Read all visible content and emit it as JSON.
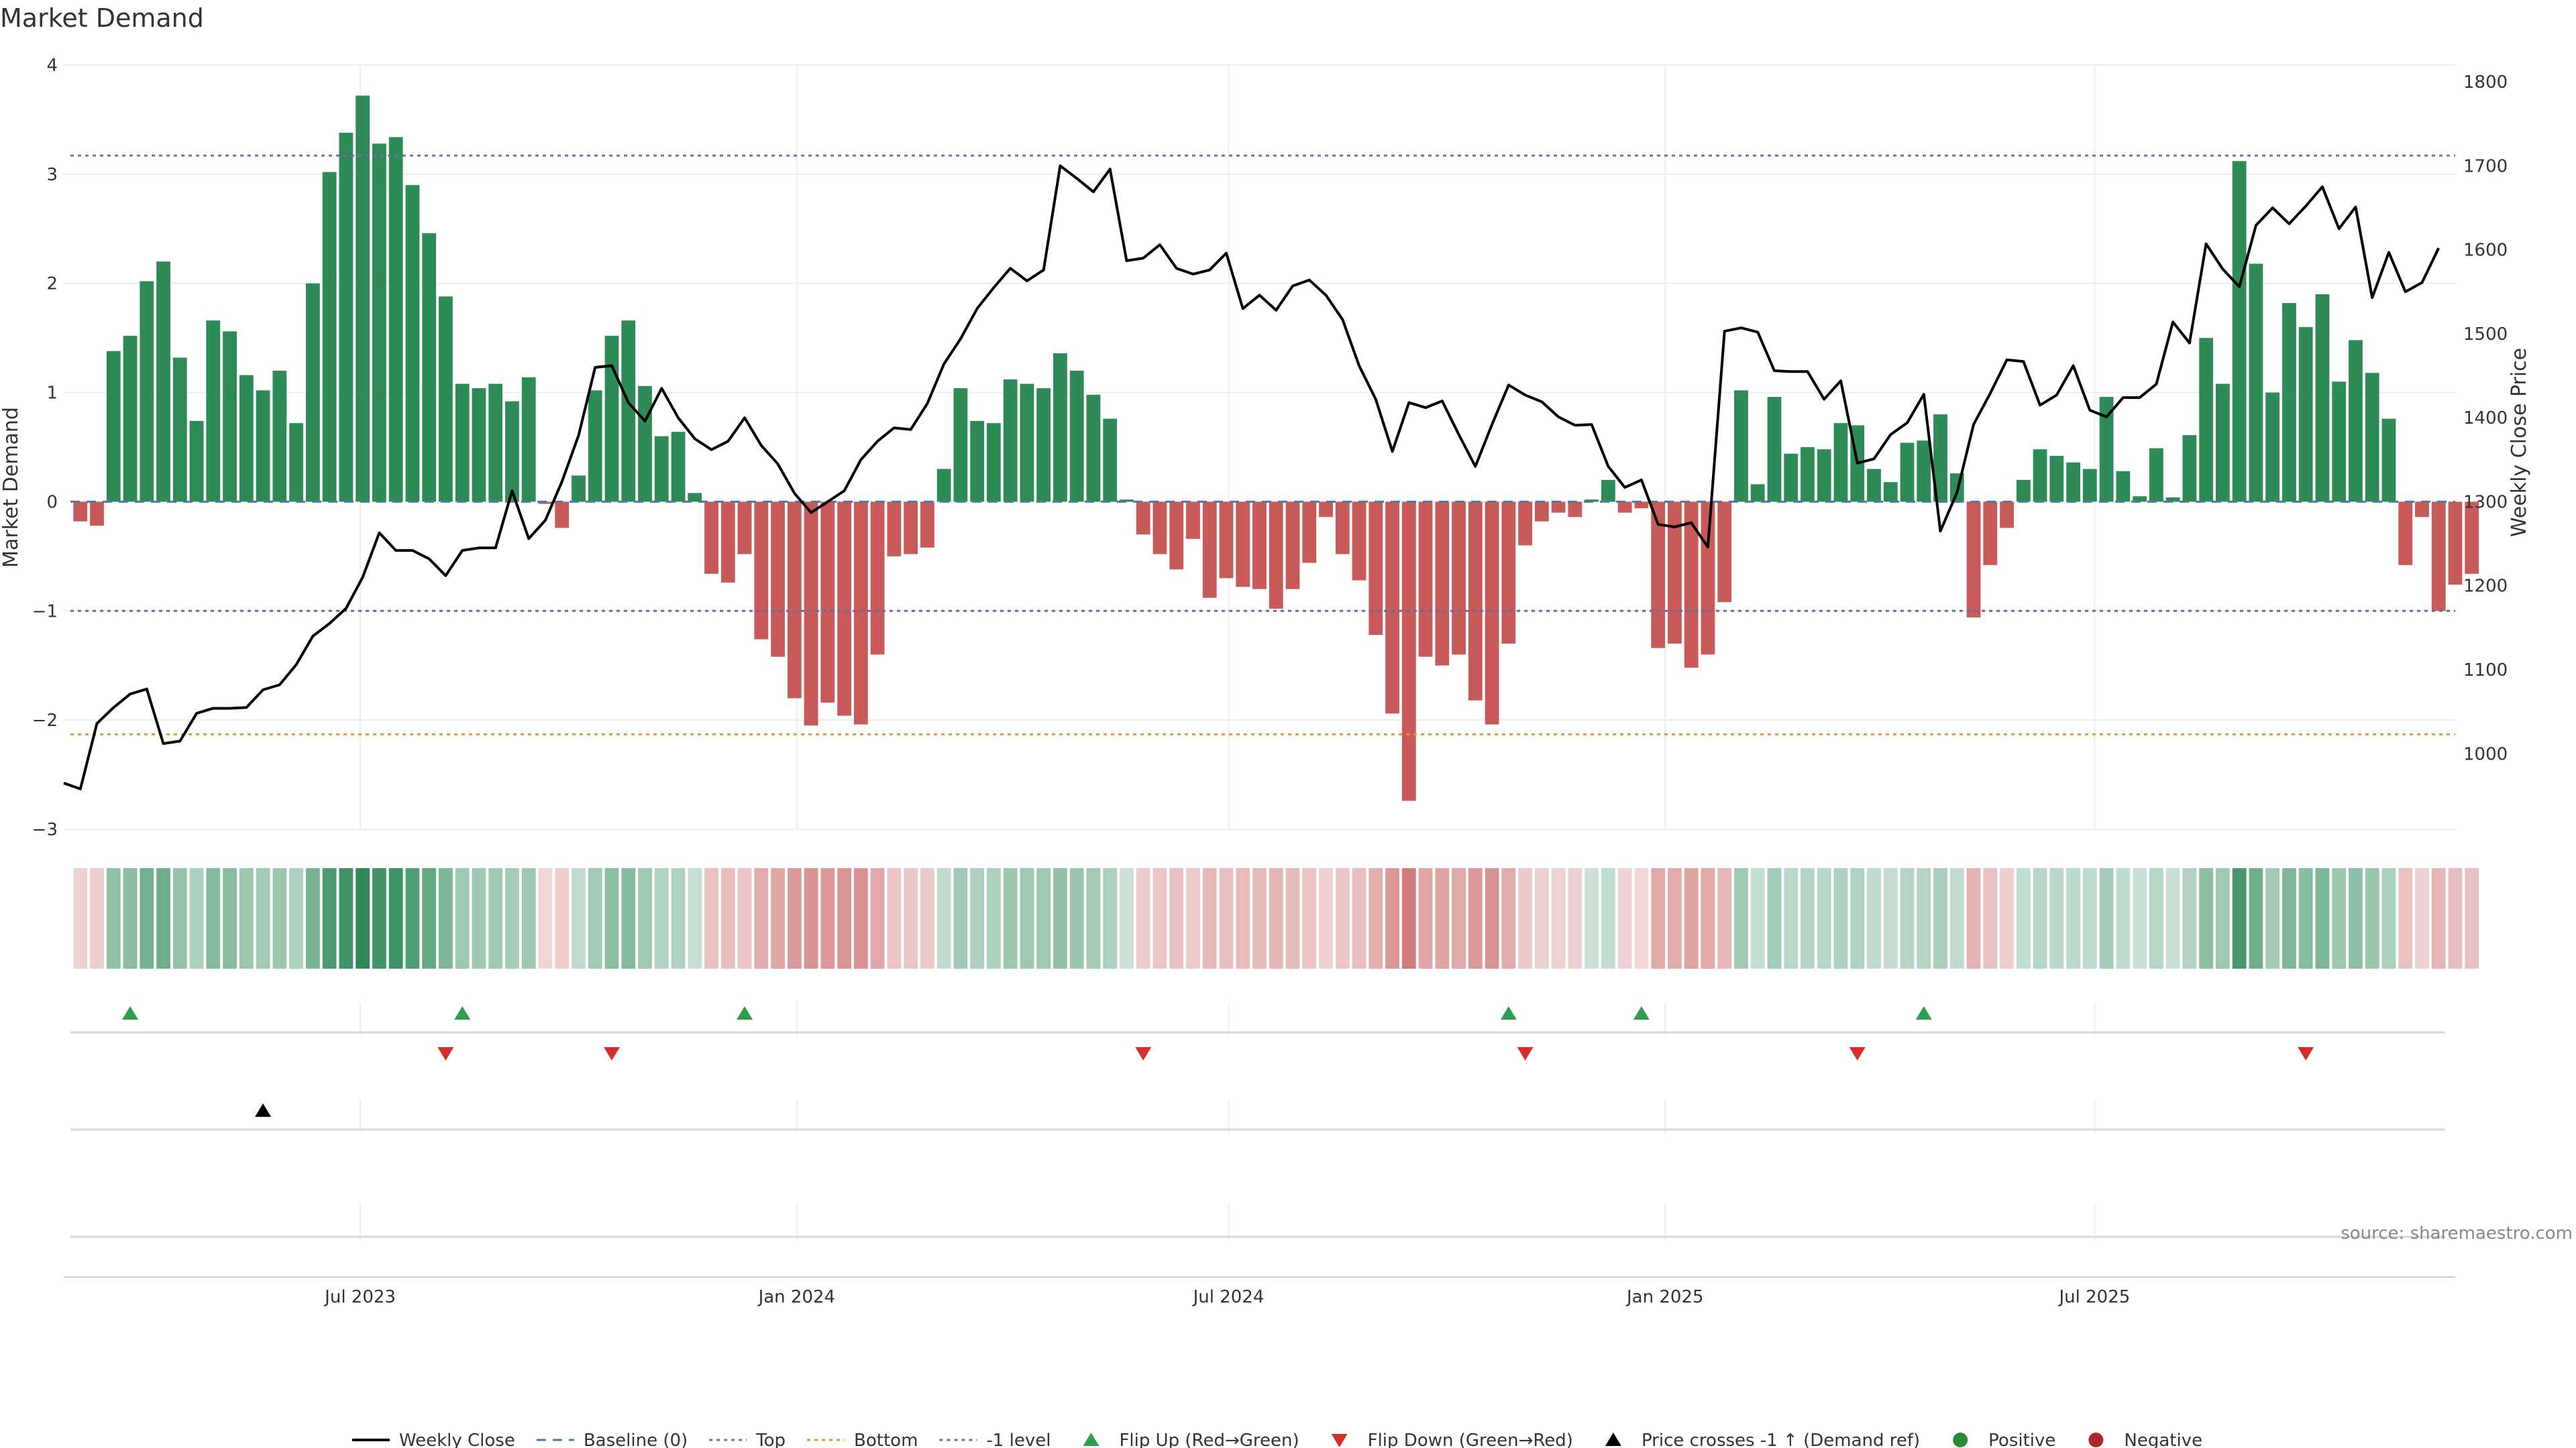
{
  "chart_data": {
    "type": "bar",
    "title": "Market Demand",
    "ylabel": "Market Demand",
    "y2label": "Weekly Close Price",
    "ylim": [
      -3,
      4
    ],
    "y2lim": [
      910,
      1820
    ],
    "yticks": [
      -3,
      -2,
      -1,
      0,
      1,
      2,
      3,
      4
    ],
    "y2ticks": [
      1000,
      1100,
      1200,
      1300,
      1400,
      1500,
      1600,
      1700,
      1800
    ],
    "x_start": "2023-02-26",
    "x_end": "2025-11-30",
    "xticks": [
      {
        "label": "Jul 2023",
        "date": "2023-07-01"
      },
      {
        "label": "Jan 2024",
        "date": "2024-01-01"
      },
      {
        "label": "Jul 2024",
        "date": "2024-07-01"
      },
      {
        "label": "Jan 2025",
        "date": "2025-01-01"
      },
      {
        "label": "Jul 2025",
        "date": "2025-07-01"
      }
    ],
    "levels": {
      "top": 3.17,
      "bottom": -2.13,
      "minus_one": -1.0,
      "baseline": 0
    },
    "series": [
      {
        "name": "Market Demand",
        "start_date": "2023-03-05",
        "values": [
          -0.18,
          -0.22,
          1.38,
          1.52,
          2.02,
          2.2,
          1.32,
          0.74,
          1.66,
          1.56,
          1.16,
          1.02,
          1.2,
          0.72,
          2.0,
          3.02,
          3.38,
          3.72,
          3.28,
          3.34,
          2.9,
          2.46,
          1.88,
          1.08,
          1.04,
          1.08,
          0.92,
          1.14,
          -0.02,
          -0.24,
          0.24,
          1.02,
          1.52,
          1.66,
          1.06,
          0.6,
          0.64,
          0.08,
          -0.66,
          -0.74,
          -0.48,
          -1.26,
          -1.42,
          -1.8,
          -2.05,
          -1.84,
          -1.96,
          -2.04,
          -1.4,
          -0.5,
          -0.48,
          -0.42,
          0.3,
          1.04,
          0.74,
          0.72,
          1.12,
          1.08,
          1.04,
          1.36,
          1.2,
          0.98,
          0.76,
          0.02,
          -0.3,
          -0.48,
          -0.62,
          -0.34,
          -0.88,
          -0.7,
          -0.78,
          -0.8,
          -0.98,
          -0.8,
          -0.56,
          -0.14,
          -0.48,
          -0.72,
          -1.22,
          -1.94,
          -2.74,
          -1.42,
          -1.5,
          -1.4,
          -1.82,
          -2.04,
          -1.3,
          -0.4,
          -0.18,
          -0.1,
          -0.14,
          0.02,
          0.2,
          -0.1,
          -0.06,
          -1.34,
          -1.3,
          -1.52,
          -1.4,
          -0.92,
          1.02,
          0.16,
          0.96,
          0.44,
          0.5,
          0.48,
          0.72,
          0.7,
          0.3,
          0.18,
          0.54,
          0.56,
          0.8,
          0.26,
          -1.06,
          -0.58,
          -0.24,
          0.2,
          0.48,
          0.42,
          0.36,
          0.3,
          0.96,
          0.28,
          0.05,
          0.49,
          0.04,
          0.61,
          1.5,
          1.08,
          3.12,
          2.18,
          1.0,
          1.82,
          1.6,
          1.9,
          1.1,
          1.48,
          1.18,
          0.76,
          -0.58,
          -0.14,
          -1.0,
          -0.76,
          -0.66
        ]
      },
      {
        "name": "Weekly Close",
        "start_date": "2023-02-26",
        "values": [
          965,
          958,
          1036,
          1055,
          1071,
          1077,
          1012,
          1015,
          1048,
          1054,
          1054,
          1055,
          1076,
          1082,
          1106,
          1140,
          1155,
          1173,
          1210,
          1263,
          1242,
          1242,
          1232,
          1212,
          1242,
          1245,
          1245,
          1313,
          1256,
          1278,
          1324,
          1379,
          1460,
          1462,
          1418,
          1396,
          1435,
          1400,
          1375,
          1362,
          1372,
          1400,
          1367,
          1345,
          1310,
          1287,
          1300,
          1313,
          1350,
          1372,
          1388,
          1386,
          1417,
          1464,
          1494,
          1530,
          1555,
          1578,
          1563,
          1576,
          1700,
          1685,
          1669,
          1696,
          1587,
          1590,
          1606,
          1578,
          1571,
          1576,
          1596,
          1530,
          1546,
          1528,
          1557,
          1564,
          1546,
          1517,
          1462,
          1422,
          1360,
          1418,
          1412,
          1420,
          1380,
          1342,
          1392,
          1439,
          1427,
          1419,
          1401,
          1391,
          1392,
          1342,
          1317,
          1326,
          1273,
          1270,
          1275,
          1246,
          1503,
          1507,
          1502,
          1456,
          1455,
          1455,
          1422,
          1444,
          1346,
          1351,
          1380,
          1394,
          1428,
          1265,
          1311,
          1392,
          1429,
          1469,
          1467,
          1415,
          1427,
          1462,
          1409,
          1401,
          1424,
          1424,
          1440,
          1514,
          1489,
          1607,
          1577,
          1556,
          1629,
          1650,
          1631,
          1652,
          1675,
          1625,
          1651,
          1543,
          1597,
          1550,
          1561,
          1602
        ]
      }
    ],
    "band_strip": {
      "description_values_from": "Market Demand",
      "positive_color": "#2e8b57",
      "negative_color": "#c85a5a"
    },
    "signals": {
      "flip_up_dates": [
        "2023-03-26",
        "2023-08-13",
        "2023-12-10",
        "2024-10-27",
        "2024-12-22",
        "2025-04-20"
      ],
      "flip_down_dates": [
        "2023-08-06",
        "2023-10-15",
        "2024-05-26",
        "2024-11-03",
        "2025-03-23",
        "2025-09-28"
      ],
      "price_cross_dates": [
        "2023-05-21"
      ]
    },
    "legend": {
      "placement": "bottom",
      "entries": [
        {
          "label": "Weekly Close",
          "kind": "line",
          "color": "#000000"
        },
        {
          "label": "Baseline (0)",
          "kind": "dash",
          "color": "#4a78a8"
        },
        {
          "label": "Top",
          "kind": "dot",
          "color": "#7b68b0"
        },
        {
          "label": "Bottom",
          "kind": "dot",
          "color": "#e8963a"
        },
        {
          "label": "-1 level",
          "kind": "dot",
          "color": "#6a6a9a"
        },
        {
          "label": "Flip Up (Red→Green)",
          "kind": "up",
          "color": "#2e9e4e"
        },
        {
          "label": "Flip Down (Green→Red)",
          "kind": "down",
          "color": "#d32f2f"
        },
        {
          "label": "Price crosses -1 ↑ (Demand ref)",
          "kind": "up",
          "color": "#000000"
        },
        {
          "label": "Positive",
          "kind": "dot-marker",
          "color": "#2a8a3a"
        },
        {
          "label": "Negative",
          "kind": "dot-marker",
          "color": "#a82828"
        }
      ]
    },
    "source_note": "source: sharemaestro.com",
    "colors": {
      "positive_bar": "#2e8b57",
      "negative_bar": "#c85a5a",
      "price_line": "#000000",
      "grid": "#eeeeee"
    }
  }
}
